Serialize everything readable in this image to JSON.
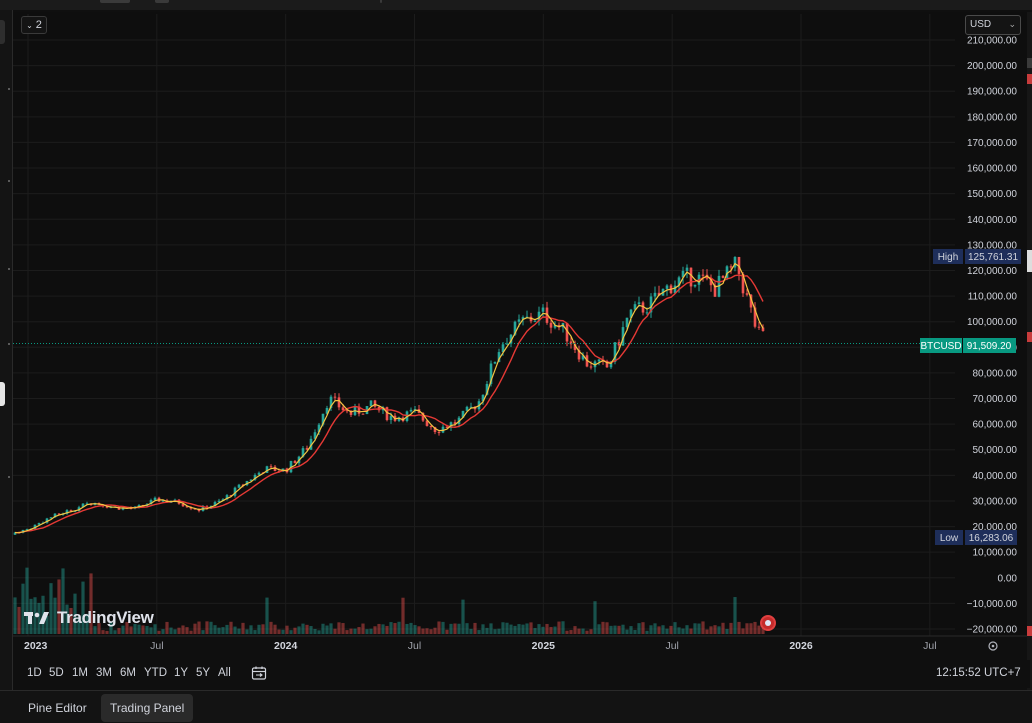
{
  "legend": {
    "toggle_label": "2"
  },
  "currency": {
    "selected": "USD"
  },
  "price_axis": {
    "ticks": [
      "210,000.00",
      "200,000.00",
      "190,000.00",
      "180,000.00",
      "170,000.00",
      "160,000.00",
      "150,000.00",
      "140,000.00",
      "130,000.00",
      "120,000.00",
      "110,000.00",
      "100,000.00",
      "90,000.00",
      "80,000.00",
      "70,000.00",
      "60,000.00",
      "50,000.00",
      "40,000.00",
      "30,000.00",
      "20,000.00",
      "10,000.00",
      "0.00",
      "−10,000.00",
      "−20,000.00"
    ],
    "high": {
      "label": "High",
      "value": "125,761.31"
    },
    "current": {
      "label": "BTCUSD",
      "value": "91,509.20"
    },
    "low": {
      "label": "Low",
      "value": "16,283.06"
    }
  },
  "time_axis": {
    "labels": [
      "2023",
      "Jul",
      "2024",
      "Jul",
      "2025",
      "Jul",
      "2026",
      "Jul"
    ]
  },
  "timeframes": [
    "1D",
    "5D",
    "1M",
    "3M",
    "6M",
    "YTD",
    "1Y",
    "5Y",
    "All"
  ],
  "clock": "12:15:52 UTC+7",
  "brand": "TradingView",
  "tabs": {
    "pine_editor": "Pine Editor",
    "trading_panel": "Trading Panel"
  },
  "colors": {
    "background": "#0e0e0e",
    "up": "#26a69a",
    "down": "#ef5350",
    "ma_fast": "#f5c542",
    "ma_slow": "#e53935",
    "current_price": "#089981",
    "marker": "#1e2e5a"
  },
  "chart_data": {
    "type": "line",
    "y_range": [
      -20000,
      210000
    ],
    "x_range": [
      "2023-01",
      "2026-07"
    ],
    "grid": true,
    "series": [
      {
        "name": "BTCUSD",
        "x": [
          "2022-12",
          "2023-01",
          "2023-02",
          "2023-03",
          "2023-04",
          "2023-05",
          "2023-06",
          "2023-07",
          "2023-08",
          "2023-09",
          "2023-10",
          "2023-11",
          "2023-12",
          "2024-01",
          "2024-02",
          "2024-03",
          "2024-04",
          "2024-05",
          "2024-06",
          "2024-07",
          "2024-08",
          "2024-09",
          "2024-10",
          "2024-11",
          "2024-12",
          "2025-01",
          "2025-02",
          "2025-03",
          "2025-04",
          "2025-05",
          "2025-06",
          "2025-07",
          "2025-08",
          "2025-09",
          "2025-10",
          "2025-11",
          "2025-12"
        ],
        "values": [
          16800,
          19000,
          23500,
          26500,
          29500,
          27500,
          27000,
          30500,
          29500,
          26500,
          30000,
          36500,
          42500,
          42000,
          51000,
          70000,
          64000,
          67000,
          62500,
          64500,
          58000,
          61000,
          69000,
          91000,
          100000,
          103000,
          96000,
          84000,
          82000,
          103000,
          107000,
          115000,
          118000,
          113000,
          122000,
          95000,
          91509
        ]
      }
    ]
  }
}
